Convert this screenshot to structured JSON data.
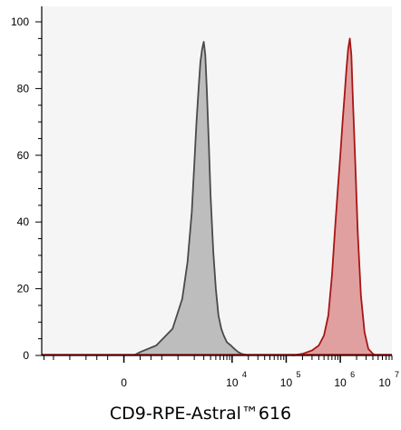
{
  "chart_data": {
    "type": "area",
    "title": "",
    "xlabel": "CD9-RPE-Astral™616",
    "ylabel": "",
    "xscale": "biexponential",
    "ylim": [
      0,
      100
    ],
    "grid": false,
    "legend": "none",
    "y_ticks": [
      "0",
      "20",
      "40",
      "60",
      "80",
      "100"
    ],
    "x_ticks": [
      {
        "base": "0",
        "exp": ""
      },
      {
        "base": "10",
        "exp": "4"
      },
      {
        "base": "10",
        "exp": "5"
      },
      {
        "base": "10",
        "exp": "6"
      },
      {
        "base": "10",
        "exp": "7"
      }
    ],
    "series": [
      {
        "fill": "#bdbdbd",
        "stroke": "#4a4a4a",
        "x": [
          180,
          300,
          600,
          900,
          1200,
          1500,
          1800,
          2000,
          2200,
          2400,
          2600,
          2800,
          3000,
          3200,
          3400,
          3700,
          4000,
          4500,
          5000,
          5600,
          6300,
          7000,
          8000,
          9500,
          11000,
          13000,
          15000,
          18000,
          20000
        ],
        "y": [
          0,
          1,
          3,
          8,
          17,
          28,
          43,
          57,
          70,
          80,
          88,
          92,
          94,
          90,
          80,
          64,
          48,
          31,
          20,
          12,
          8,
          6,
          4,
          3,
          2,
          1,
          0.5,
          0.2,
          0
        ]
      },
      {
        "fill": "#e0a0a0",
        "stroke": "#a81515",
        "x": [
          130000,
          200000,
          300000,
          400000,
          500000,
          600000,
          700000,
          800000,
          900000,
          1000000,
          1100000,
          1200000,
          1300000,
          1400000,
          1500000,
          1600000,
          1700000,
          1900000,
          2100000,
          2400000,
          2800000,
          3300000,
          4000000,
          4500000
        ],
        "y": [
          0,
          0.5,
          1.5,
          3,
          6,
          12,
          24,
          38,
          50,
          60,
          70,
          78,
          86,
          92,
          95,
          90,
          78,
          57,
          37,
          18,
          7,
          2,
          0.5,
          0
        ]
      }
    ]
  }
}
